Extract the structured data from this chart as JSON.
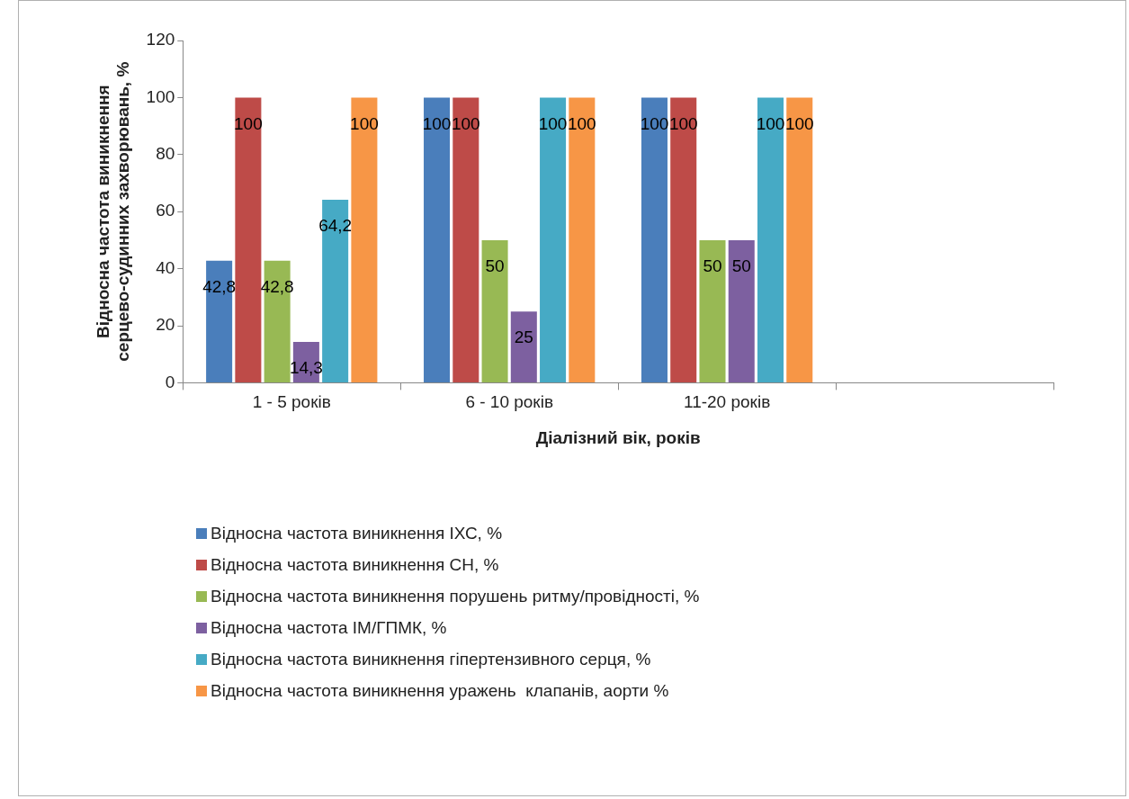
{
  "chart_data": {
    "type": "bar",
    "xlabel": "Діалізний вік, років",
    "ylabel": "Відносна частота виникнення\nсерцево-судинних захворювань, %",
    "categories": [
      "1 - 5 років",
      "6 - 10 років",
      "11-20 років",
      null
    ],
    "ylim": [
      0,
      120
    ],
    "yticks": [
      0,
      20,
      40,
      60,
      80,
      100,
      120
    ],
    "grid": false,
    "legend": "bottom",
    "series": [
      {
        "name": "Відносна частота виникнення ІХС, %",
        "color": "#4a7ebb",
        "values": [
          42.8,
          100,
          100,
          null
        ],
        "value_labels": [
          "42,8",
          "100",
          "100",
          null
        ]
      },
      {
        "name": "Відносна частота виникнення СН, %",
        "color": "#be4b48",
        "values": [
          100,
          100,
          100,
          null
        ],
        "value_labels": [
          "100",
          "100",
          "100",
          null
        ]
      },
      {
        "name": "Відносна частота виникнення порушень ритму/провідності, %",
        "color": "#98b954",
        "values": [
          42.8,
          50,
          50,
          null
        ],
        "value_labels": [
          "42,8",
          "50",
          "50",
          null
        ]
      },
      {
        "name": "Відносна частота ІМ/ГПМК, %",
        "color": "#7d60a0",
        "values": [
          14.3,
          25,
          50,
          null
        ],
        "value_labels": [
          "14,3",
          "25",
          "50",
          null
        ]
      },
      {
        "name": "Відносна частота виникнення гіпертензивного серця, %",
        "color": "#46aac5",
        "values": [
          64.2,
          100,
          100,
          null
        ],
        "value_labels": [
          "64,2",
          "100",
          "100",
          null
        ]
      },
      {
        "name": "Відносна частота виникнення уражень  клапанів, аорти %",
        "color": "#f79646",
        "values": [
          100,
          100,
          100,
          null
        ],
        "value_labels": [
          "100",
          "100",
          "100",
          null
        ]
      }
    ]
  }
}
